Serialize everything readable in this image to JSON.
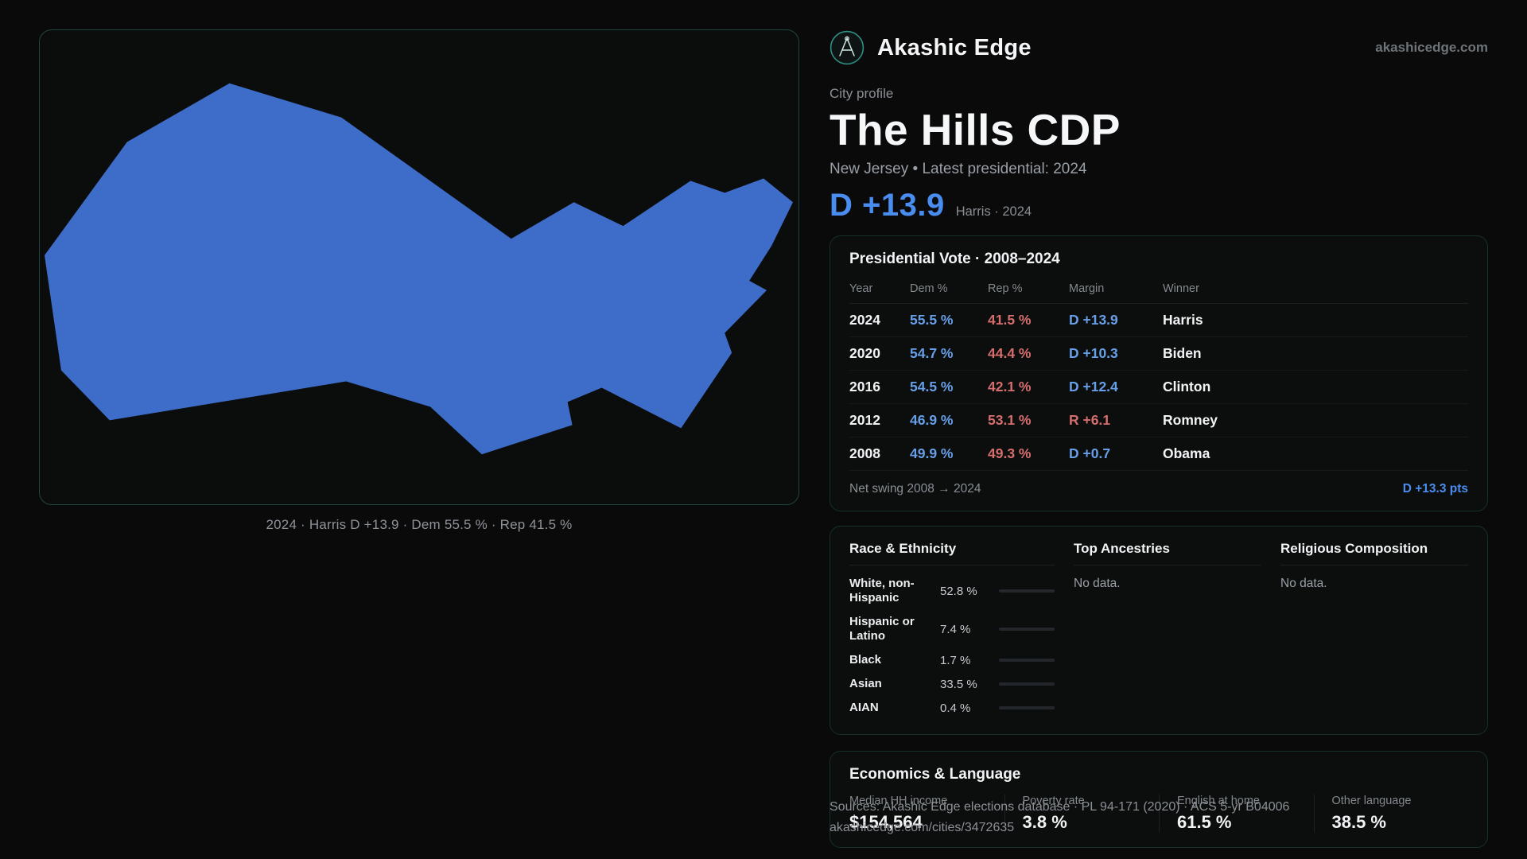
{
  "brand": {
    "name": "Akashic Edge",
    "domain": "akashicedge.com",
    "accent_teal": "#2f8f84"
  },
  "profile": {
    "kicker": "City profile",
    "title": "The Hills CDP",
    "subtitle": "New Jersey • Latest presidential: 2024",
    "headline_margin": "D +13.9",
    "headline_note": "Harris · 2024"
  },
  "map": {
    "caption": "2024 · Harris D +13.9 · Dem 55.5 % · Rep 41.5 %",
    "fill": "#3e6dc9"
  },
  "presidential": {
    "title": "Presidential Vote · 2008–2024",
    "columns": [
      "Year",
      "Dem %",
      "Rep %",
      "Margin",
      "Winner"
    ],
    "rows": [
      {
        "year": "2024",
        "dem": "55.5 %",
        "rep": "41.5 %",
        "margin": "D +13.9",
        "winner": "Harris"
      },
      {
        "year": "2020",
        "dem": "54.7 %",
        "rep": "44.4 %",
        "margin": "D +10.3",
        "winner": "Biden"
      },
      {
        "year": "2016",
        "dem": "54.5 %",
        "rep": "42.1 %",
        "margin": "D +12.4",
        "winner": "Clinton"
      },
      {
        "year": "2012",
        "dem": "46.9 %",
        "rep": "53.1 %",
        "margin": "R +6.1",
        "winner": "Romney"
      },
      {
        "year": "2008",
        "dem": "49.9 %",
        "rep": "49.3 %",
        "margin": "D +0.7",
        "winner": "Obama"
      }
    ],
    "net_swing_label": "Net swing 2008 → 2024",
    "net_swing_value": "D +13.3 pts",
    "dem_color": "#67a0e8",
    "rep_color": "#d66e6e"
  },
  "demographics": {
    "race": {
      "title": "Race & Ethnicity",
      "rows": [
        {
          "label": "White, non-Hispanic",
          "value": "52.8 %",
          "pct": 52.8,
          "color": "#9aa3ad"
        },
        {
          "label": "Hispanic or Latino",
          "value": "7.4 %",
          "pct": 7.4,
          "color": "#e3a23e"
        },
        {
          "label": "Black",
          "value": "1.7 %",
          "pct": 1.7,
          "color": "#d7dde2"
        },
        {
          "label": "Asian",
          "value": "33.5 %",
          "pct": 33.5,
          "color": "#2fc0a0"
        },
        {
          "label": "AIAN",
          "value": "0.4 %",
          "pct": 0.4,
          "color": "#d7dde2"
        }
      ]
    },
    "ancestries": {
      "title": "Top Ancestries",
      "empty": "No data."
    },
    "religion": {
      "title": "Religious Composition",
      "empty": "No data."
    }
  },
  "economics": {
    "title": "Economics & Language",
    "stats": [
      {
        "label": "Median HH income",
        "value": "$154,564"
      },
      {
        "label": "Poverty rate",
        "value": "3.8 %"
      },
      {
        "label": "English at home",
        "value": "61.5 %"
      },
      {
        "label": "Other language",
        "value": "38.5 %"
      }
    ]
  },
  "footer": {
    "sources": "Sources: Akashic Edge elections database · PL 94-171 (2020) · ACS 5-yr B04006",
    "permalink": "akashicedge.com/cities/3472635"
  }
}
